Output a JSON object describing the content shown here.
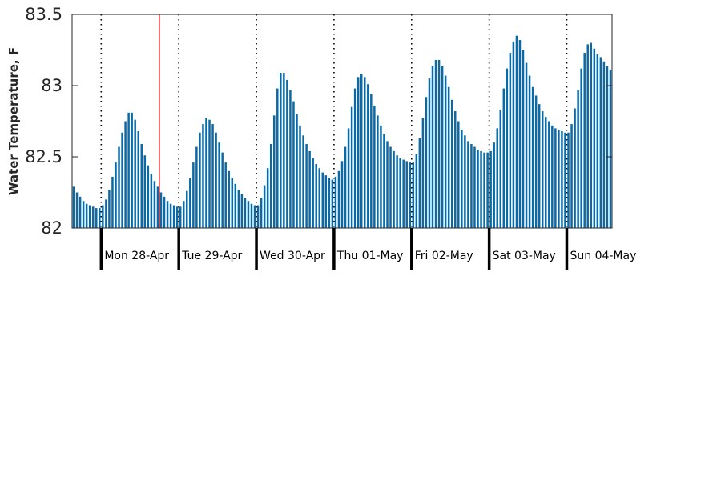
{
  "chart_data": {
    "type": "bar",
    "ylabel": "Water Temperature, F",
    "xlabel": "",
    "ylim": [
      82,
      83.5
    ],
    "yticks": [
      82,
      82.5,
      83,
      83.5
    ],
    "ytick_labels": [
      "82",
      "82.5",
      "83",
      "83.5"
    ],
    "grid": false,
    "legend": "none",
    "bar_color": "#0a6aa8",
    "marker_color": "#ff0000",
    "day_divider_style": "dotted",
    "hours_per_day": 24,
    "start_hour_offset": -9,
    "marker_day_hour": [
      0,
      18
    ],
    "days": [
      "Mon 28-Apr",
      "Tue 29-Apr",
      "Wed 30-Apr",
      "Thu 01-May",
      "Fri 02-May",
      "Sat 03-May",
      "Sun 04-May"
    ],
    "values": [
      82.29,
      82.25,
      82.22,
      82.19,
      82.17,
      82.16,
      82.15,
      82.14,
      82.14,
      82.16,
      82.2,
      82.27,
      82.36,
      82.46,
      82.57,
      82.67,
      82.75,
      82.81,
      82.81,
      82.76,
      82.68,
      82.59,
      82.51,
      82.44,
      82.38,
      82.33,
      82.29,
      82.25,
      82.22,
      82.19,
      82.17,
      82.16,
      82.15,
      82.15,
      82.19,
      82.26,
      82.35,
      82.46,
      82.57,
      82.67,
      82.73,
      82.77,
      82.76,
      82.73,
      82.67,
      82.6,
      82.53,
      82.46,
      82.4,
      82.35,
      82.31,
      82.27,
      82.24,
      82.21,
      82.19,
      82.17,
      82.16,
      82.16,
      82.21,
      82.3,
      82.42,
      82.59,
      82.79,
      82.98,
      83.09,
      83.09,
      83.04,
      82.97,
      82.89,
      82.8,
      82.72,
      82.65,
      82.59,
      82.54,
      82.49,
      82.45,
      82.42,
      82.39,
      82.37,
      82.35,
      82.34,
      82.36,
      82.4,
      82.47,
      82.57,
      82.7,
      82.85,
      82.98,
      83.06,
      83.08,
      83.06,
      83.01,
      82.94,
      82.86,
      82.79,
      82.72,
      82.66,
      82.61,
      82.57,
      82.54,
      82.51,
      82.49,
      82.48,
      82.47,
      82.46,
      82.46,
      82.52,
      82.63,
      82.77,
      82.92,
      83.05,
      83.14,
      83.18,
      83.18,
      83.14,
      83.07,
      82.99,
      82.9,
      82.82,
      82.75,
      82.69,
      82.65,
      82.61,
      82.59,
      82.57,
      82.55,
      82.54,
      82.53,
      82.53,
      82.54,
      82.6,
      82.7,
      82.83,
      82.98,
      83.12,
      83.23,
      83.31,
      83.35,
      83.32,
      83.25,
      83.16,
      83.07,
      82.99,
      82.93,
      82.87,
      82.82,
      82.78,
      82.75,
      82.72,
      82.7,
      82.69,
      82.68,
      82.67,
      82.67,
      82.73,
      82.84,
      82.97,
      83.12,
      83.23,
      83.29,
      83.3,
      83.26,
      83.22,
      83.2,
      83.17,
      83.14,
      83.11
    ]
  }
}
